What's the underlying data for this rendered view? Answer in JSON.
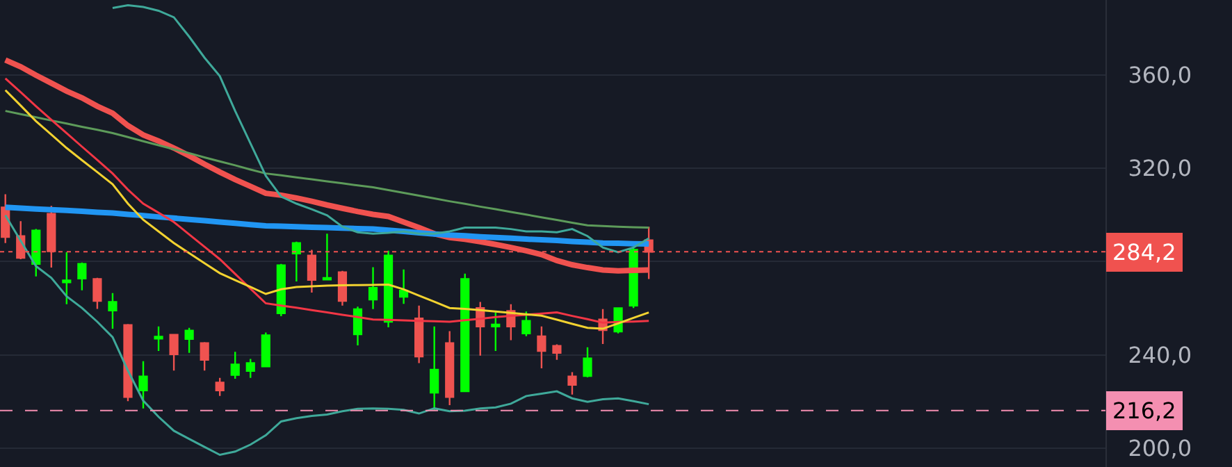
{
  "chart_data": {
    "type": "candlestick",
    "categories": [
      null,
      null,
      null,
      null,
      null,
      null,
      null,
      null,
      null,
      null,
      null,
      null,
      null,
      null,
      null,
      null,
      null,
      null,
      null,
      null,
      null,
      null,
      null,
      null,
      null,
      null,
      null,
      null,
      null,
      null,
      null,
      null,
      null,
      null,
      null,
      null,
      null,
      null,
      null,
      null,
      null,
      null,
      null
    ],
    "ohlc": [
      [
        303.2,
        308.8,
        287.9,
        290.5
      ],
      [
        290.9,
        297.3,
        281.0,
        281.6
      ],
      [
        279.0,
        293.9,
        273.6,
        293.3
      ],
      [
        300.4,
        303.8,
        277.4,
        284.4
      ],
      [
        271.1,
        284.0,
        261.7,
        271.9
      ],
      [
        272.7,
        279.6,
        267.7,
        279.0
      ],
      [
        272.5,
        273.0,
        259.7,
        263.1
      ],
      [
        259.0,
        266.5,
        251.2,
        262.7
      ],
      [
        252.8,
        253.2,
        220.2,
        222.0
      ],
      [
        224.8,
        237.3,
        217.1,
        230.8
      ],
      [
        247.0,
        252.2,
        241.7,
        247.8
      ],
      [
        248.6,
        248.6,
        233.3,
        240.3
      ],
      [
        246.8,
        251.6,
        240.9,
        250.4
      ],
      [
        245.1,
        245.5,
        233.3,
        237.9
      ],
      [
        228.2,
        230.2,
        222.4,
        224.8
      ],
      [
        231.4,
        241.3,
        229.8,
        235.9
      ],
      [
        233.1,
        238.3,
        230.2,
        236.5
      ],
      [
        235.1,
        249.6,
        235.1,
        248.4
      ],
      [
        257.8,
        279.0,
        256.6,
        278.4
      ],
      [
        283.4,
        288.5,
        271.5,
        287.9
      ],
      [
        282.6,
        285.0,
        266.7,
        272.1
      ],
      [
        272.3,
        291.9,
        272.1,
        273.0
      ],
      [
        275.4,
        276.0,
        261.1,
        263.1
      ],
      [
        248.8,
        260.7,
        244.1,
        259.6
      ],
      [
        263.7,
        277.6,
        259.6,
        268.7
      ],
      [
        254.2,
        284.6,
        251.8,
        282.6
      ],
      [
        264.9,
        276.6,
        261.9,
        267.5
      ],
      [
        255.6,
        261.1,
        236.5,
        239.3
      ],
      [
        223.8,
        252.2,
        216.2,
        233.7
      ],
      [
        245.1,
        250.2,
        218.5,
        222.0
      ],
      [
        224.4,
        274.8,
        224.4,
        272.5
      ],
      [
        260.1,
        262.7,
        239.7,
        252.2
      ],
      [
        252.2,
        258.2,
        241.7,
        253.0
      ],
      [
        258.8,
        261.7,
        246.3,
        252.2
      ],
      [
        249.2,
        258.6,
        248.0,
        254.6
      ],
      [
        248.0,
        252.2,
        234.3,
        241.7
      ],
      [
        243.9,
        244.5,
        237.9,
        240.9
      ],
      [
        230.8,
        232.6,
        223.0,
        227.2
      ],
      [
        231.0,
        243.3,
        230.4,
        238.5
      ],
      [
        255.2,
        259.6,
        244.7,
        250.6
      ],
      [
        250.0,
        260.0,
        249.2,
        260.0
      ],
      [
        261.1,
        286.3,
        260.1,
        285.0
      ],
      [
        289.1,
        294.9,
        272.5,
        284.2
      ]
    ],
    "colors": [
      "#ef5350",
      "#ef5350",
      "#00ff00",
      "#ef5350",
      "#00ff00",
      "#00ff00",
      "#ef5350",
      "#00ff00",
      "#ef5350",
      "#00ff00",
      "#00ff00",
      "#ef5350",
      "#00ff00",
      "#ef5350",
      "#ef5350",
      "#00ff00",
      "#00ff00",
      "#00ff00",
      "#00ff00",
      "#00ff00",
      "#ef5350",
      "#00ff00",
      "#ef5350",
      "#00ff00",
      "#00ff00",
      "#00ff00",
      "#00ff00",
      "#ef5350",
      "#00ff00",
      "#ef5350",
      "#00ff00",
      "#ef5350",
      "#00ff00",
      "#ef5350",
      "#00ff00",
      "#ef5350",
      "#ef5350",
      "#ef5350",
      "#00ff00",
      "#ef5350",
      "#00ff00",
      "#00ff00",
      "#ef5350"
    ],
    "series": [
      {
        "type": "line",
        "color": "#f0524f",
        "values": [
          366.3,
          363.4,
          359.8,
          356.4,
          353.0,
          350.1,
          346.5,
          343.5,
          338.2,
          334.2,
          331.6,
          328.6,
          325.3,
          321.7,
          318.3,
          315.1,
          312.2,
          309.2,
          308.4,
          307.2,
          305.8,
          304.2,
          302.8,
          301.4,
          300.2,
          299.3,
          296.9,
          294.5,
          291.9,
          290.3,
          289.5,
          288.5,
          287.3,
          286.0,
          284.6,
          283.0,
          280.4,
          278.6,
          277.4,
          276.4,
          276.0,
          276.2,
          276.4
        ]
      },
      {
        "type": "line",
        "color": "#2196f3",
        "values": [
          303.2,
          302.9,
          302.5,
          302.2,
          301.9,
          301.5,
          301.1,
          300.8,
          300.2,
          299.7,
          299.1,
          298.6,
          298.0,
          297.5,
          296.9,
          296.4,
          295.8,
          295.3,
          295.1,
          294.9,
          294.7,
          294.5,
          294.3,
          294.1,
          293.9,
          293.4,
          292.9,
          292.3,
          291.8,
          291.3,
          291.0,
          290.6,
          290.3,
          290.0,
          289.6,
          289.3,
          289.0,
          288.6,
          288.3,
          287.9,
          287.8,
          287.6,
          287.5
        ]
      },
      {
        "type": "line",
        "color": "#5d9b5a",
        "values": [
          344.5,
          343.1,
          341.8,
          340.4,
          339.1,
          337.7,
          336.4,
          335.0,
          333.3,
          331.5,
          329.8,
          328.1,
          326.4,
          324.6,
          322.9,
          321.2,
          319.4,
          317.7,
          316.9,
          316.0,
          315.2,
          314.3,
          313.5,
          312.6,
          311.8,
          310.6,
          309.4,
          308.2,
          307.0,
          305.8,
          304.7,
          303.5,
          302.4,
          301.2,
          300.1,
          298.9,
          297.8,
          296.6,
          295.5,
          295.2,
          294.9,
          294.7,
          294.5
        ]
      },
      {
        "type": "line",
        "color": "#f23645",
        "values": [
          358.4,
          352.5,
          346.5,
          340.7,
          335.0,
          329.2,
          323.5,
          317.7,
          310.8,
          304.8,
          300.9,
          296.9,
          291.6,
          286.3,
          281.0,
          274.7,
          268.4,
          262.1,
          261.1,
          260.2,
          259.2,
          258.2,
          257.2,
          256.2,
          255.2,
          255.0,
          254.8,
          254.6,
          254.4,
          254.2,
          254.9,
          255.5,
          256.2,
          256.7,
          257.2,
          257.7,
          258.2,
          256.7,
          255.3,
          253.8,
          254.1,
          254.3,
          254.6
        ]
      },
      {
        "type": "line",
        "color": "#f2d230",
        "values": [
          353.4,
          346.8,
          340.1,
          334.4,
          328.6,
          323.4,
          318.3,
          313.1,
          304.8,
          297.9,
          292.9,
          287.9,
          283.6,
          279.3,
          275.0,
          272.0,
          269.1,
          266.1,
          268.1,
          269.1,
          269.4,
          269.7,
          269.8,
          269.9,
          270.0,
          270.1,
          268.1,
          265.4,
          262.8,
          260.1,
          259.7,
          259.2,
          258.6,
          258.0,
          257.4,
          256.8,
          255.1,
          253.3,
          251.6,
          251.2,
          253.5,
          255.9,
          258.2
        ]
      },
      {
        "type": "line",
        "color": "#3fa99a",
        "values": [
          null,
          null,
          null,
          null,
          null,
          null,
          null,
          388.6,
          389.8,
          389.0,
          387.4,
          384.6,
          376.3,
          367.3,
          359.4,
          344.5,
          330.6,
          316.7,
          307.8,
          304.8,
          302.4,
          299.8,
          294.9,
          292.5,
          291.9,
          292.3,
          292.9,
          291.9,
          291.9,
          292.9,
          294.5,
          294.5,
          294.5,
          293.9,
          292.9,
          292.9,
          292.5,
          293.9,
          290.9,
          286.0,
          284.0,
          286.0,
          289.9
        ]
      },
      {
        "type": "line",
        "color": "#3fa99a",
        "values": [
          299.8,
          288.9,
          278.0,
          273.0,
          265.1,
          260.1,
          254.2,
          247.6,
          233.3,
          220.4,
          213.5,
          207.5,
          204.0,
          200.6,
          197.2,
          198.6,
          201.6,
          205.6,
          211.5,
          212.9,
          213.9,
          214.5,
          215.9,
          216.9,
          217.1,
          216.9,
          216.5,
          214.9,
          217.1,
          215.9,
          216.1,
          217.1,
          217.5,
          219.1,
          222.4,
          223.4,
          224.4,
          221.4,
          219.9,
          221.0,
          221.4,
          220.2,
          218.9
        ]
      }
    ],
    "ylim": [
      192,
      392
    ],
    "yticks": [
      {
        "value": 200,
        "label": "200,0"
      },
      {
        "value": 240,
        "label": "240,0"
      },
      {
        "value": 280,
        "label": null
      },
      {
        "value": 320,
        "label": "320,0"
      },
      {
        "value": 360,
        "label": "360,0"
      }
    ],
    "ref_lines": [
      {
        "axis": "y",
        "value": 284.2,
        "label": "284,2",
        "color": "#f0524f",
        "line_style": "dotted"
      },
      {
        "axis": "y",
        "value": 216.2,
        "label": "216,2",
        "color": "#f48fb1",
        "line_style": "dashed"
      }
    ],
    "grid": "y",
    "tick_labels": "y"
  }
}
